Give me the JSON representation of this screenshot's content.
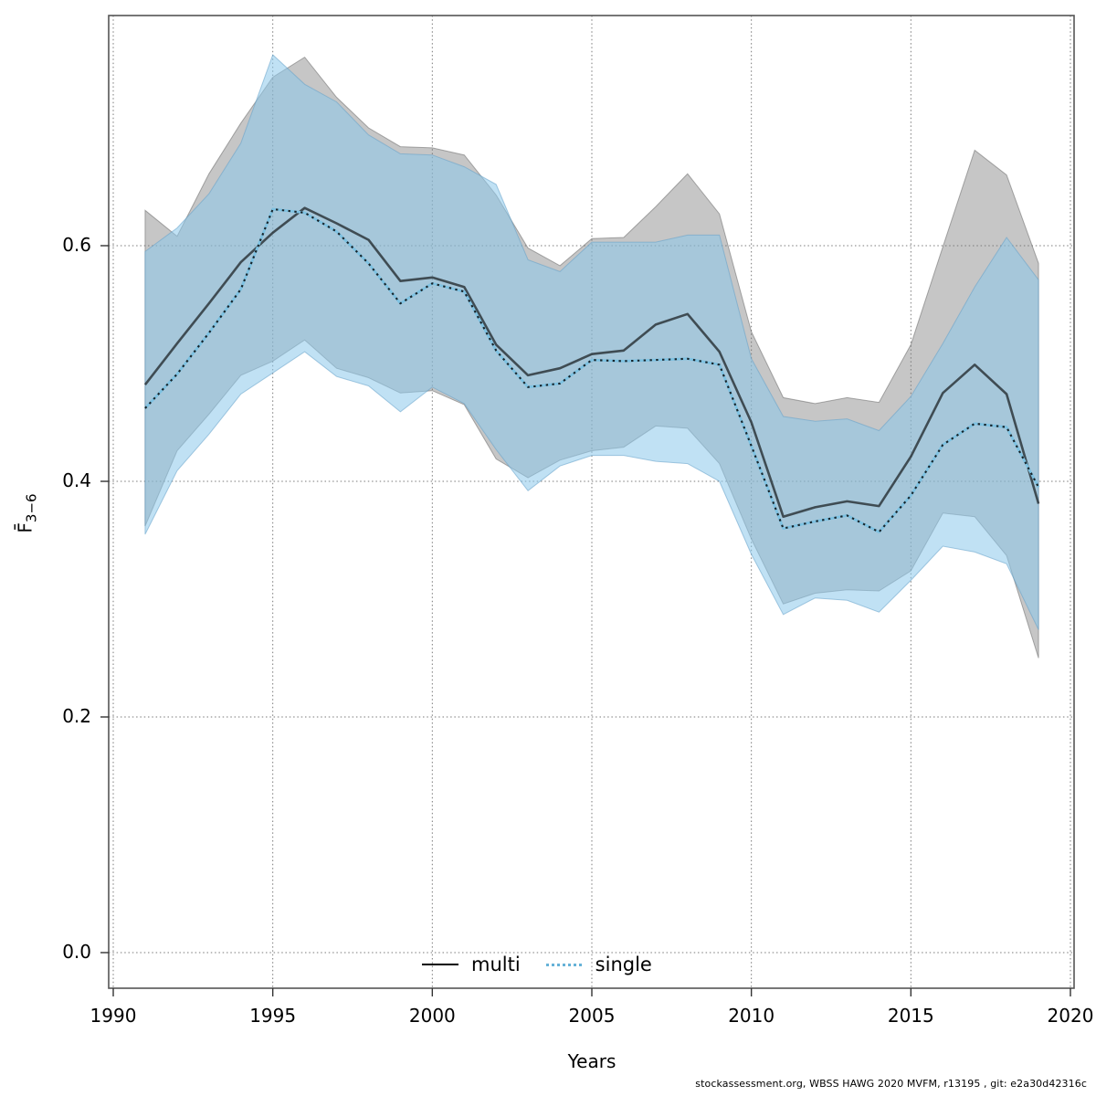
{
  "figure": {
    "xlabel": "Years",
    "ylabel_main": "F̄",
    "ylabel_sub": "3−6",
    "caption": "stockassessment.org, WBSS HAWG 2020 MVFM, r13195 , git: e2a30d42316c"
  },
  "legend": {
    "items": [
      {
        "label": "multi",
        "sample": "solid-black-line"
      },
      {
        "label": "single",
        "sample": "dotted-blue-line"
      }
    ]
  },
  "colors": {
    "multi_band_fill": "rgba(120,120,120,0.42)",
    "multi_band_edge": "rgba(105,105,105,0.55)",
    "single_band_fill": "rgba(140,200,235,0.55)",
    "single_band_edge": "rgba(100,160,200,0.55)",
    "multi_line": "rgba(0,0,0,0.62)",
    "single_line_under": "#7ec2e2",
    "single_line_dots": "rgba(0,0,0,0.82)",
    "grid": "#7a7a7a",
    "frame": "#555555",
    "tick": "#333333"
  },
  "chart_data": {
    "type": "line",
    "title": "",
    "xlabel": "Years",
    "ylabel": "F̄3−6",
    "grid": true,
    "legend_position": "bottom-center",
    "x_tick_labels": [
      "1990",
      "1995",
      "2000",
      "2005",
      "2010",
      "2015",
      "2020"
    ],
    "x_tick_values": [
      1990,
      1995,
      2000,
      2005,
      2010,
      2015,
      2020
    ],
    "y_tick_labels": [
      "0.0",
      "0.2",
      "0.4",
      "0.6"
    ],
    "y_tick_values": [
      0.0,
      0.2,
      0.4,
      0.6
    ],
    "xlim": [
      1989.86,
      2020.12
    ],
    "ylim": [
      -0.035,
      0.795
    ],
    "years": [
      1991,
      1992,
      1993,
      1994,
      1995,
      1996,
      1997,
      1998,
      1999,
      2000,
      2001,
      2002,
      2003,
      2004,
      2005,
      2006,
      2007,
      2008,
      2009,
      2010,
      2011,
      2012,
      2013,
      2014,
      2015,
      2016,
      2017,
      2018,
      2019
    ],
    "series": [
      {
        "name": "multi",
        "line_style": "solid",
        "values": [
          0.482,
          0.517,
          0.551,
          0.586,
          0.611,
          0.632,
          0.619,
          0.605,
          0.57,
          0.573,
          0.565,
          0.516,
          0.49,
          0.496,
          0.508,
          0.511,
          0.533,
          0.542,
          0.51,
          0.45,
          0.37,
          0.378,
          0.383,
          0.379,
          0.421,
          0.475,
          0.499,
          0.474,
          0.381
        ],
        "band_lo": [
          0.362,
          0.426,
          0.457,
          0.49,
          0.502,
          0.52,
          0.496,
          0.488,
          0.475,
          0.477,
          0.465,
          0.419,
          0.403,
          0.418,
          0.426,
          0.429,
          0.447,
          0.445,
          0.415,
          0.351,
          0.296,
          0.305,
          0.308,
          0.307,
          0.324,
          0.373,
          0.37,
          0.337,
          0.25
        ],
        "band_hi": [
          0.63,
          0.608,
          0.661,
          0.704,
          0.743,
          0.76,
          0.726,
          0.7,
          0.684,
          0.683,
          0.677,
          0.643,
          0.598,
          0.583,
          0.606,
          0.607,
          0.633,
          0.661,
          0.627,
          0.527,
          0.471,
          0.466,
          0.471,
          0.467,
          0.516,
          0.599,
          0.681,
          0.66,
          0.585
        ]
      },
      {
        "name": "single",
        "line_style": "dotted",
        "values": [
          0.462,
          0.491,
          0.526,
          0.563,
          0.631,
          0.628,
          0.612,
          0.585,
          0.551,
          0.568,
          0.561,
          0.511,
          0.48,
          0.483,
          0.503,
          0.502,
          0.503,
          0.504,
          0.499,
          0.43,
          0.36,
          0.366,
          0.371,
          0.357,
          0.388,
          0.431,
          0.449,
          0.446,
          0.395
        ],
        "band_lo": [
          0.355,
          0.409,
          0.44,
          0.474,
          0.492,
          0.51,
          0.489,
          0.481,
          0.459,
          0.48,
          0.466,
          0.427,
          0.392,
          0.413,
          0.422,
          0.422,
          0.417,
          0.415,
          0.4,
          0.338,
          0.287,
          0.301,
          0.299,
          0.289,
          0.316,
          0.345,
          0.34,
          0.33,
          0.274
        ],
        "band_hi": [
          0.595,
          0.615,
          0.644,
          0.687,
          0.762,
          0.737,
          0.722,
          0.694,
          0.678,
          0.677,
          0.667,
          0.652,
          0.588,
          0.578,
          0.603,
          0.603,
          0.603,
          0.609,
          0.609,
          0.504,
          0.455,
          0.451,
          0.453,
          0.443,
          0.472,
          0.517,
          0.565,
          0.607,
          0.571
        ]
      }
    ]
  }
}
